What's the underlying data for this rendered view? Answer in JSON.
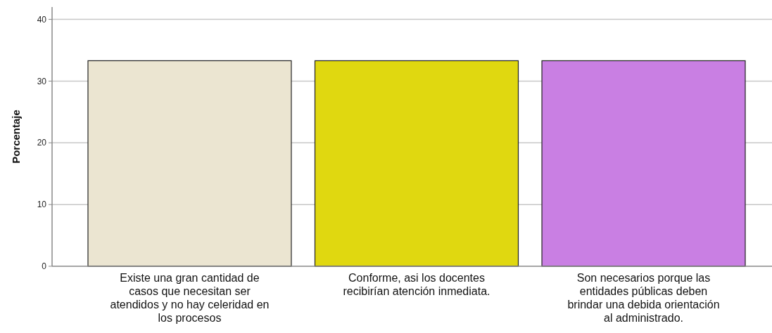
{
  "chart_data": {
    "type": "bar",
    "ylabel": "Porcentaje",
    "categories": [
      "Existe una gran cantidad de casos que necesitan ser atendidos y no hay celeridad en los procesos",
      "Conforme, asi los docentes recibirían atención inmediata.",
      "Son necesarios porque las entidades públicas deben brindar una debida orientación al administrado."
    ],
    "values": [
      33.3,
      33.3,
      33.3
    ],
    "colors": [
      "#ebe5d1",
      "#e0d810",
      "#c97fe3"
    ],
    "ylim": [
      0,
      42
    ],
    "yticks": [
      0,
      10,
      20,
      30,
      40
    ],
    "grid": "y"
  }
}
